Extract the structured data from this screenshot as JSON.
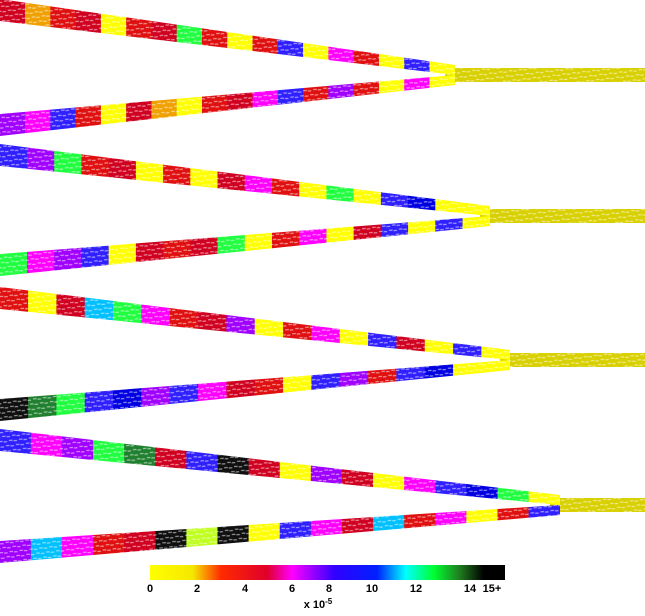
{
  "colorbar": {
    "ticks": [
      "0",
      "2",
      "4",
      "6",
      "8",
      "10",
      "12",
      "14",
      "15+"
    ],
    "unit_base": "x 10",
    "unit_exponent": "-5"
  }
}
